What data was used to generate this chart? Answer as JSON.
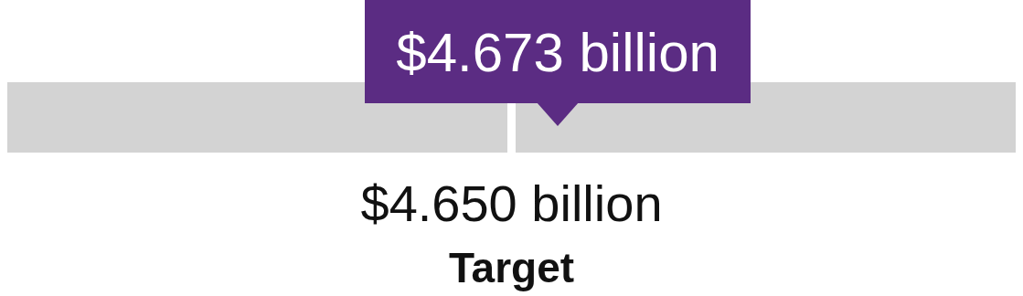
{
  "chart_data": {
    "type": "other",
    "categories": [
      null,
      "Target"
    ],
    "values": [
      4.673,
      4.65
    ],
    "value_labels": [
      "$4.673 billion",
      "$4.650 billion"
    ],
    "colors": [
      "#5b2c83",
      "#ffffff"
    ]
  }
}
